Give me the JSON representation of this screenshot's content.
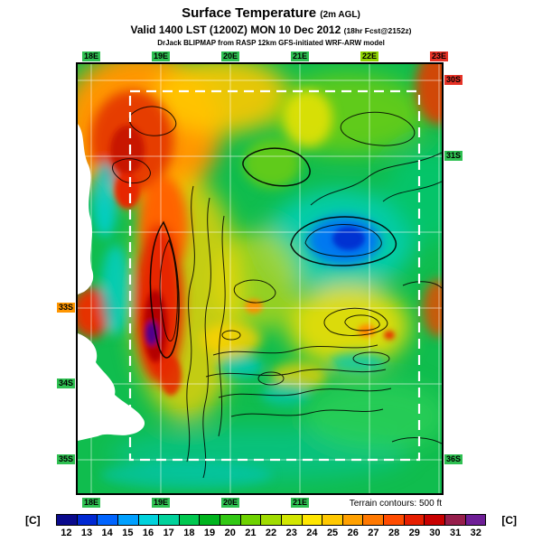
{
  "header": {
    "title": "Surface Temperature",
    "title_suffix": "(2m AGL)",
    "valid": "Valid 1400 LST (1200Z) MON 10 Dec 2012",
    "valid_suffix": "(18hr Fcst@2152z)",
    "model": "DrJack BLIPMAP from RASP 12km GFS-initiated WRF-ARW model"
  },
  "map": {
    "top_labels": [
      {
        "text": "18E",
        "line": 0,
        "chip": "#2fc052"
      },
      {
        "text": "19E",
        "line": 1,
        "chip": "#2fc052"
      },
      {
        "text": "20E",
        "line": 2,
        "chip": "#2fc052"
      },
      {
        "text": "21E",
        "line": 3,
        "chip": "#2fc052"
      },
      {
        "text": "22E",
        "line": 4,
        "chip": "#8fd400"
      },
      {
        "text": "23E",
        "line": 5,
        "chip": "#e63226"
      }
    ],
    "bottom_labels": [
      {
        "text": "18E",
        "line": 0,
        "chip": "#2fc052"
      },
      {
        "text": "19E",
        "line": 1,
        "chip": "#2fc052"
      },
      {
        "text": "20E",
        "line": 2,
        "chip": "#2fc052"
      },
      {
        "text": "21E",
        "line": 3,
        "chip": "#2fc052"
      }
    ],
    "left_labels": [
      {
        "text": "33S",
        "line": 3,
        "chip": "#ff9600"
      },
      {
        "text": "34S",
        "line": 4,
        "chip": "#2fc052"
      },
      {
        "text": "35S",
        "line": 5,
        "chip": "#2fc052"
      }
    ],
    "right_labels": [
      {
        "text": "30S",
        "line": 0,
        "chip": "#e63226"
      },
      {
        "text": "31S",
        "line": 1,
        "chip": "#2fc052"
      },
      {
        "text": "36S",
        "line": 5,
        "chip": "#2fc052"
      }
    ]
  },
  "footer": {
    "terrain_note": "Terrain contours: 500 ft",
    "unit_left": "[C]",
    "unit_right": "[C]"
  },
  "colorbar": {
    "values": [
      12,
      13,
      14,
      15,
      16,
      17,
      18,
      19,
      20,
      21,
      22,
      23,
      24,
      25,
      26,
      27,
      28,
      29,
      30,
      31,
      32
    ],
    "colors": [
      "#0a0a8c",
      "#0028d2",
      "#0064ff",
      "#00a0ff",
      "#00d2dc",
      "#00d29b",
      "#00c850",
      "#00b41e",
      "#32c814",
      "#6ed200",
      "#a0dc00",
      "#d2e600",
      "#ffe600",
      "#ffc800",
      "#ffa000",
      "#ff7800",
      "#ff4b00",
      "#e61e00",
      "#c80000",
      "#961e4b",
      "#6e1e96"
    ]
  }
}
